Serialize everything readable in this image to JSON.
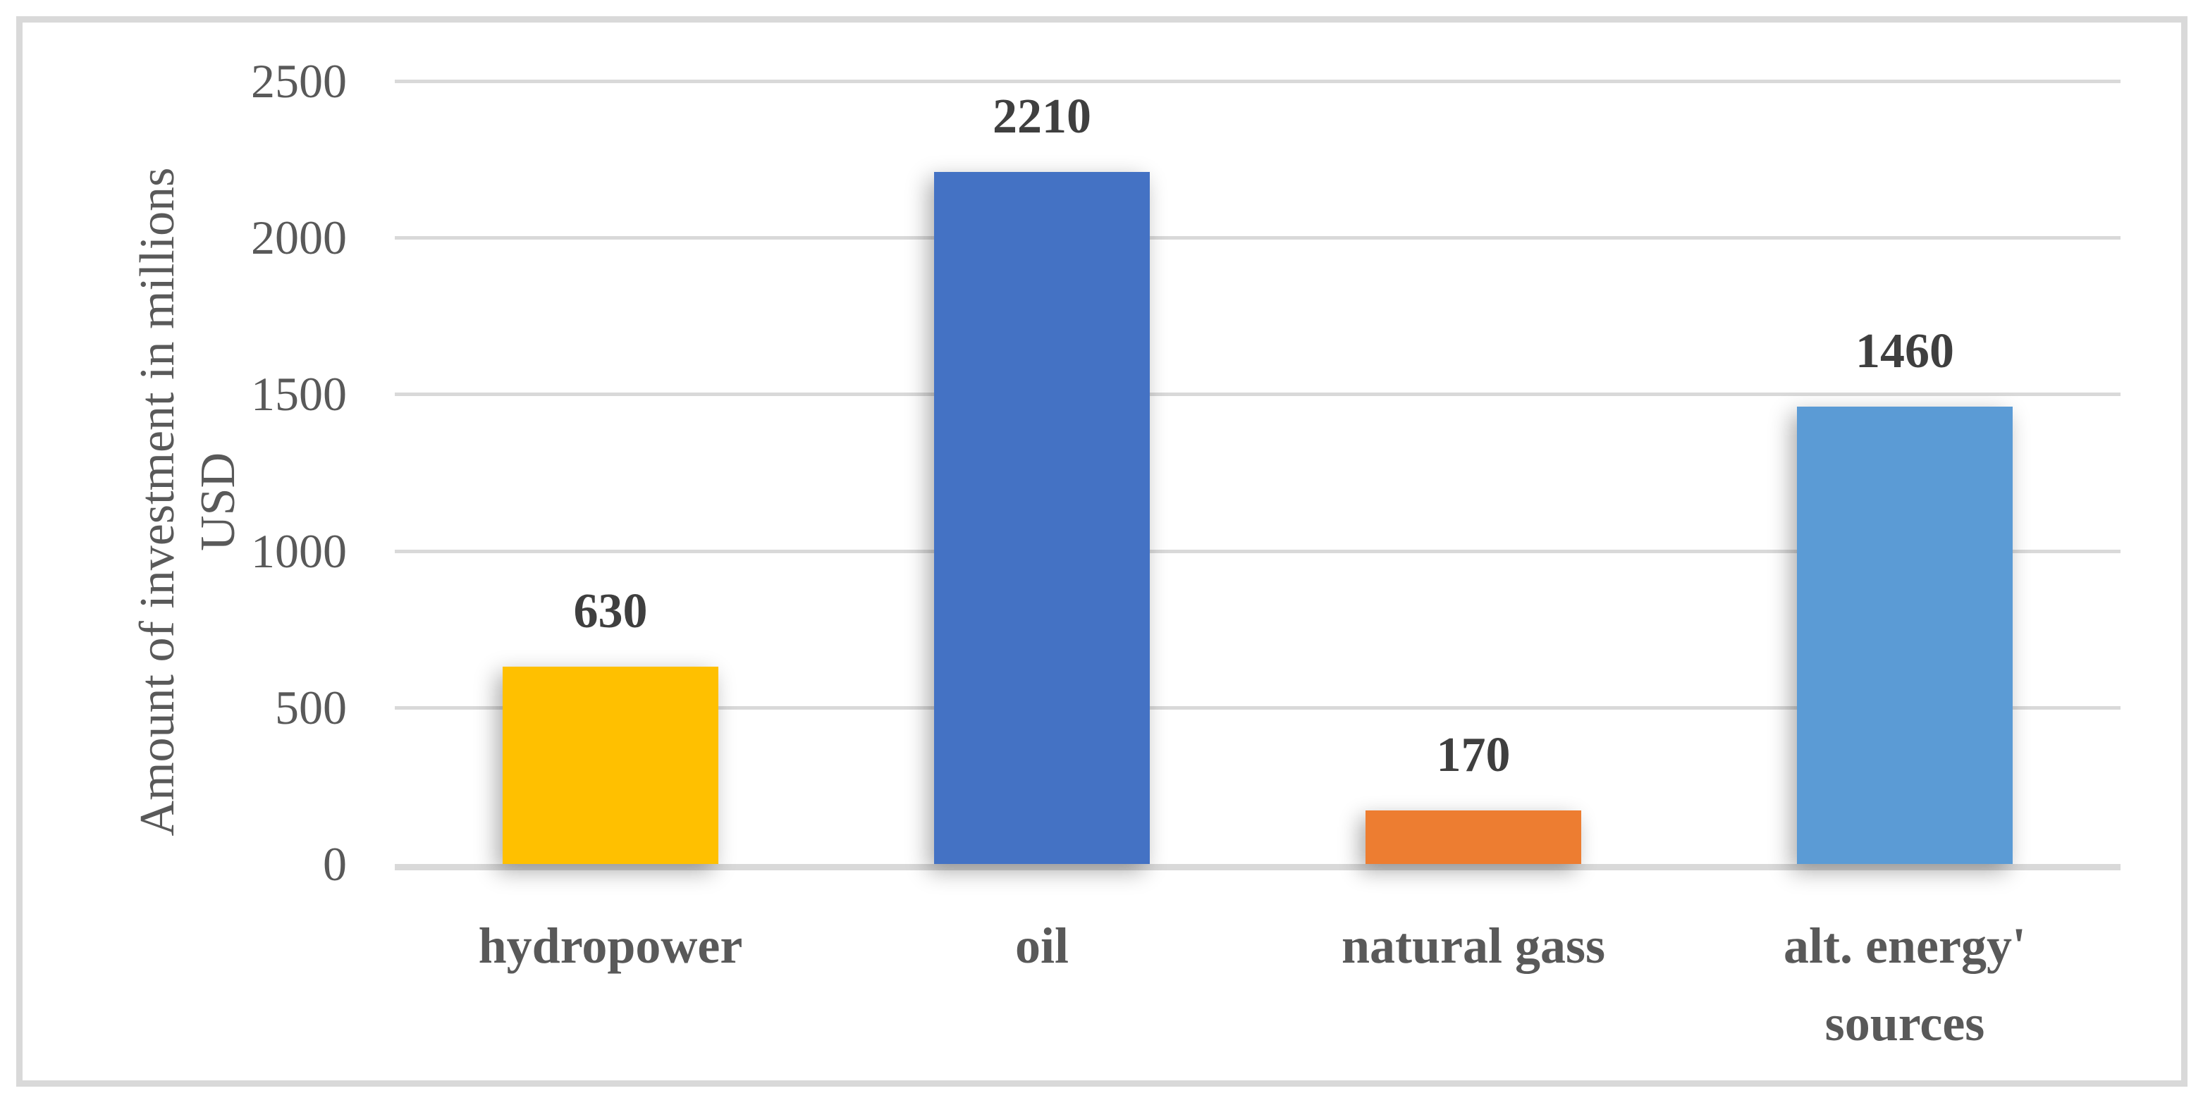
{
  "chart_data": {
    "type": "bar",
    "title": "",
    "categories": [
      [
        "hydropower"
      ],
      [
        "oil"
      ],
      [
        "natural gass"
      ],
      [
        "alt. energy'",
        "sources"
      ]
    ],
    "values": [
      630,
      2210,
      170,
      1460
    ],
    "data_labels": [
      "630",
      "2210",
      "170",
      "1460"
    ],
    "bar_colors": [
      "#FFC000",
      "#4472C4",
      "#ED7D31",
      "#5B9BD5"
    ],
    "ylabel": "Amount of investment in millions USD",
    "ylabel_lines": [
      "Amount of investment in millions",
      "USD"
    ],
    "xlabel": "",
    "y_ticks": [
      0,
      500,
      1000,
      1500,
      2000,
      2500
    ],
    "ylim": [
      0,
      2500
    ],
    "grid": true,
    "legend": "none"
  },
  "style": {
    "background": "#FFFFFF",
    "frame_border_color": "#D9D9D9",
    "grid_color": "#D9D9D9",
    "axis_line_color": "#D9D9D9",
    "tick_text_color": "#595959",
    "category_text_color": "#595959",
    "ylabel_text_color": "#595959",
    "data_label_color": "#3F3F3F"
  }
}
